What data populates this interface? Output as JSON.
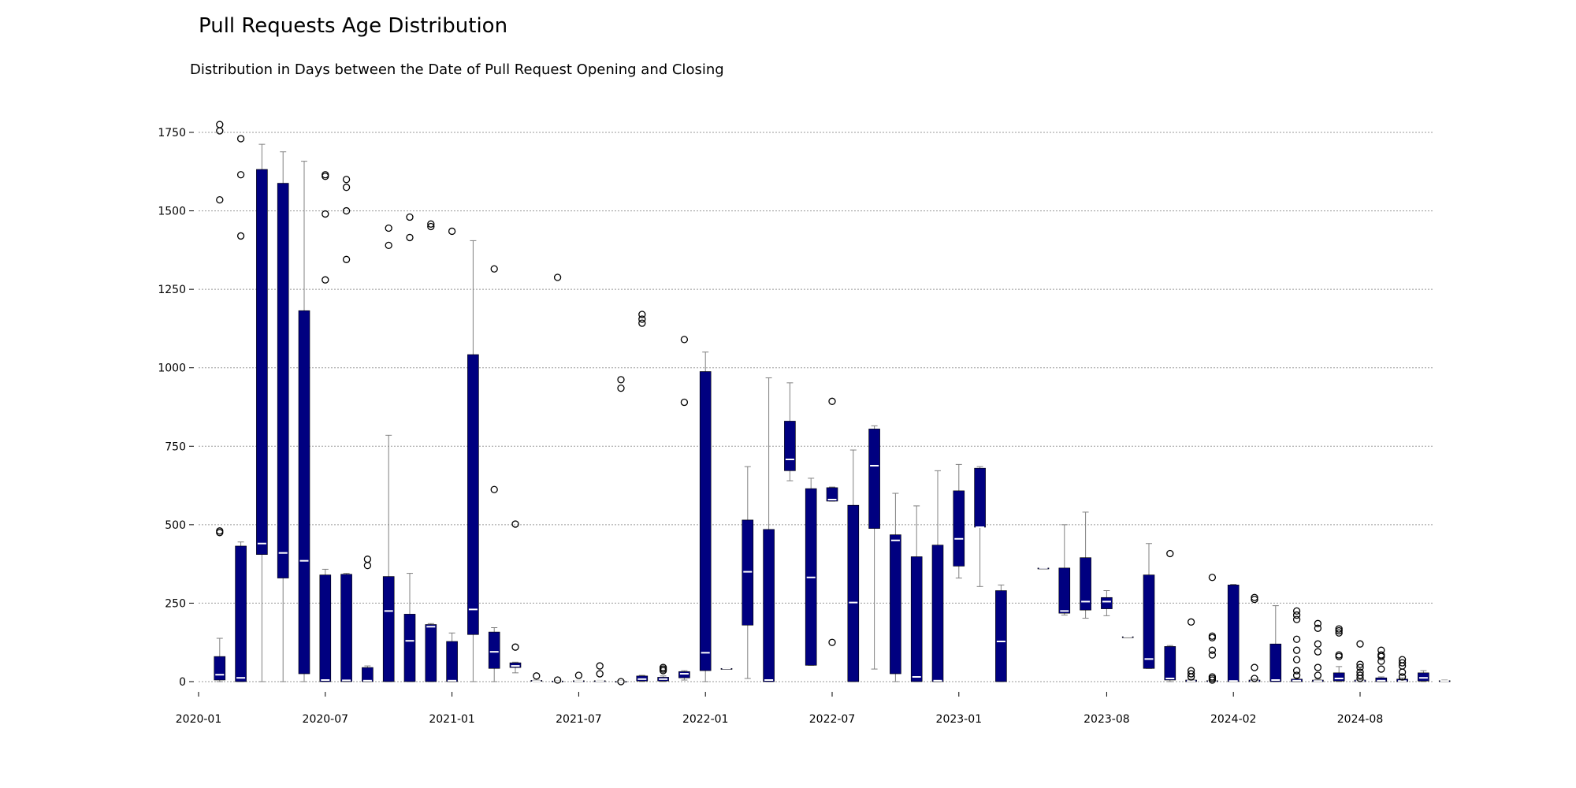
{
  "chart_data": {
    "type": "box",
    "title": "Pull Requests Age Distribution",
    "subtitle": "Distribution in Days between the Date of Pull Request Opening and Closing",
    "xlabel": "",
    "ylabel": "",
    "ylim": [
      -80,
      1820
    ],
    "yticks": [
      0,
      250,
      500,
      750,
      1000,
      1250,
      1500,
      1750
    ],
    "xticks": [
      "2020-01",
      "2020-07",
      "2021-01",
      "2021-07",
      "2022-01",
      "2022-07",
      "2023-01",
      "2023-08",
      "2024-02",
      "2024-08"
    ],
    "grid": true,
    "colors": {
      "box": "#000080",
      "median": "#ffffff",
      "whisker": "#808080",
      "grid": "#999999"
    },
    "boxes": [
      {
        "month": "2020-02",
        "q1": 5,
        "median": 22,
        "q3": 80,
        "low": 0,
        "high": 138,
        "outliers": [
          475,
          480,
          1535,
          1755,
          1775
        ]
      },
      {
        "month": "2020-03",
        "q1": 0,
        "median": 12,
        "q3": 432,
        "low": 0,
        "high": 445,
        "outliers": [
          1420,
          1615,
          1730
        ]
      },
      {
        "month": "2020-04",
        "q1": 405,
        "median": 440,
        "q3": 1632,
        "low": 0,
        "high": 1712,
        "outliers": []
      },
      {
        "month": "2020-05",
        "q1": 330,
        "median": 410,
        "q3": 1588,
        "low": 0,
        "high": 1688,
        "outliers": []
      },
      {
        "month": "2020-06",
        "q1": 25,
        "median": 385,
        "q3": 1182,
        "low": 0,
        "high": 1658,
        "outliers": []
      },
      {
        "month": "2020-07",
        "q1": 0,
        "median": 5,
        "q3": 340,
        "low": 0,
        "high": 358,
        "outliers": [
          1280,
          1490,
          1610,
          1615
        ]
      },
      {
        "month": "2020-08",
        "q1": 0,
        "median": 4,
        "q3": 342,
        "low": 0,
        "high": 345,
        "outliers": [
          1345,
          1500,
          1575,
          1600
        ]
      },
      {
        "month": "2020-09",
        "q1": 0,
        "median": 3,
        "q3": 45,
        "low": 0,
        "high": 50,
        "outliers": [
          370,
          390
        ]
      },
      {
        "month": "2020-10",
        "q1": 0,
        "median": 225,
        "q3": 335,
        "low": 0,
        "high": 785,
        "outliers": [
          1390,
          1445
        ]
      },
      {
        "month": "2020-11",
        "q1": 0,
        "median": 130,
        "q3": 215,
        "low": 0,
        "high": 345,
        "outliers": [
          1415,
          1480
        ]
      },
      {
        "month": "2020-12",
        "q1": 0,
        "median": 175,
        "q3": 182,
        "low": 0,
        "high": 185,
        "outliers": [
          1450,
          1458
        ]
      },
      {
        "month": "2021-01",
        "q1": 0,
        "median": 3,
        "q3": 128,
        "low": 0,
        "high": 155,
        "outliers": [
          1435
        ]
      },
      {
        "month": "2021-02",
        "q1": 150,
        "median": 230,
        "q3": 1042,
        "low": 0,
        "high": 1405,
        "outliers": []
      },
      {
        "month": "2021-03",
        "q1": 42,
        "median": 95,
        "q3": 158,
        "low": 0,
        "high": 172,
        "outliers": [
          612,
          1315
        ]
      },
      {
        "month": "2021-04",
        "q1": 45,
        "median": 50,
        "q3": 60,
        "low": 28,
        "high": 62,
        "outliers": [
          110,
          502
        ]
      },
      {
        "month": "2021-05",
        "q1": 1,
        "median": 2,
        "q3": 4,
        "low": 0,
        "high": 5,
        "outliers": [
          18
        ]
      },
      {
        "month": "2021-06",
        "q1": 0,
        "median": 1,
        "q3": 2,
        "low": 0,
        "high": 3,
        "outliers": [
          5,
          1288
        ]
      },
      {
        "month": "2021-07",
        "q1": 1,
        "median": 2,
        "q3": 3,
        "low": 0,
        "high": 4,
        "outliers": [
          20
        ]
      },
      {
        "month": "2021-08",
        "q1": 1,
        "median": 2,
        "q3": 3,
        "low": 0,
        "high": 4,
        "outliers": [
          25,
          50
        ]
      },
      {
        "month": "2021-09",
        "q1": 0,
        "median": 0,
        "q3": 1,
        "low": 0,
        "high": 2,
        "outliers": [
          0,
          935,
          962
        ]
      },
      {
        "month": "2021-10",
        "q1": 2,
        "median": 8,
        "q3": 18,
        "low": 0,
        "high": 20,
        "outliers": [
          1142,
          1155,
          1170
        ]
      },
      {
        "month": "2021-11",
        "q1": 2,
        "median": 8,
        "q3": 14,
        "low": 0,
        "high": 18,
        "outliers": [
          35,
          40,
          45
        ]
      },
      {
        "month": "2021-12",
        "q1": 12,
        "median": 25,
        "q3": 32,
        "low": 5,
        "high": 35,
        "outliers": [
          890,
          1090
        ]
      },
      {
        "month": "2022-01",
        "q1": 35,
        "median": 92,
        "q3": 988,
        "low": 0,
        "high": 1050,
        "outliers": []
      },
      {
        "month": "2022-02",
        "q1": 42,
        "median": 42,
        "q3": 42,
        "low": 40,
        "high": 43,
        "outliers": []
      },
      {
        "month": "2022-03",
        "q1": 180,
        "median": 350,
        "q3": 515,
        "low": 10,
        "high": 685,
        "outliers": []
      },
      {
        "month": "2022-04",
        "q1": 0,
        "median": 5,
        "q3": 485,
        "low": 0,
        "high": 968,
        "outliers": []
      },
      {
        "month": "2022-05",
        "q1": 672,
        "median": 708,
        "q3": 830,
        "low": 640,
        "high": 952,
        "outliers": []
      },
      {
        "month": "2022-06",
        "q1": 52,
        "median": 332,
        "q3": 615,
        "low": 52,
        "high": 648,
        "outliers": []
      },
      {
        "month": "2022-07",
        "q1": 575,
        "median": 580,
        "q3": 618,
        "low": 575,
        "high": 620,
        "outliers": [
          125,
          893
        ]
      },
      {
        "month": "2022-08",
        "q1": 0,
        "median": 252,
        "q3": 562,
        "low": 0,
        "high": 738,
        "outliers": []
      },
      {
        "month": "2022-09",
        "q1": 488,
        "median": 688,
        "q3": 805,
        "low": 40,
        "high": 815,
        "outliers": []
      },
      {
        "month": "2022-10",
        "q1": 25,
        "median": 450,
        "q3": 468,
        "low": 0,
        "high": 600,
        "outliers": []
      },
      {
        "month": "2022-11",
        "q1": 0,
        "median": 15,
        "q3": 398,
        "low": 0,
        "high": 560,
        "outliers": []
      },
      {
        "month": "2022-12",
        "q1": 0,
        "median": 3,
        "q3": 435,
        "low": 0,
        "high": 672,
        "outliers": []
      },
      {
        "month": "2023-01",
        "q1": 368,
        "median": 455,
        "q3": 608,
        "low": 330,
        "high": 692,
        "outliers": []
      },
      {
        "month": "2023-02",
        "q1": 492,
        "median": 492,
        "q3": 680,
        "low": 303,
        "high": 685,
        "outliers": []
      },
      {
        "month": "2023-03",
        "q1": 0,
        "median": 128,
        "q3": 290,
        "low": 0,
        "high": 308,
        "outliers": []
      },
      {
        "month": "2023-05",
        "q1": 362,
        "median": 362,
        "q3": 362,
        "low": 362,
        "high": 363,
        "outliers": []
      },
      {
        "month": "2023-06",
        "q1": 218,
        "median": 225,
        "q3": 362,
        "low": 212,
        "high": 500,
        "outliers": []
      },
      {
        "month": "2023-07",
        "q1": 228,
        "median": 255,
        "q3": 395,
        "low": 202,
        "high": 540,
        "outliers": []
      },
      {
        "month": "2023-08",
        "q1": 232,
        "median": 255,
        "q3": 268,
        "low": 210,
        "high": 290,
        "outliers": []
      },
      {
        "month": "2023-09",
        "q1": 143,
        "median": 143,
        "q3": 143,
        "low": 142,
        "high": 144,
        "outliers": []
      },
      {
        "month": "2023-10",
        "q1": 42,
        "median": 72,
        "q3": 340,
        "low": 42,
        "high": 440,
        "outliers": []
      },
      {
        "month": "2023-11",
        "q1": 5,
        "median": 10,
        "q3": 112,
        "low": 0,
        "high": 115,
        "outliers": [
          408
        ]
      },
      {
        "month": "2023-12",
        "q1": 0,
        "median": 2,
        "q3": 5,
        "low": 0,
        "high": 8,
        "outliers": [
          15,
          25,
          35,
          190
        ]
      },
      {
        "month": "2024-01",
        "q1": 0,
        "median": 1,
        "q3": 3,
        "low": 0,
        "high": 4,
        "outliers": [
          5,
          10,
          15,
          85,
          100,
          140,
          145,
          332
        ]
      },
      {
        "month": "2024-02",
        "q1": 0,
        "median": 2,
        "q3": 308,
        "low": 0,
        "high": 310,
        "outliers": []
      },
      {
        "month": "2024-03",
        "q1": 0,
        "median": 2,
        "q3": 5,
        "low": 0,
        "high": 8,
        "outliers": [
          10,
          45,
          262,
          268
        ]
      },
      {
        "month": "2024-04",
        "q1": 0,
        "median": 5,
        "q3": 120,
        "low": 0,
        "high": 242,
        "outliers": []
      },
      {
        "month": "2024-05",
        "q1": 0,
        "median": 3,
        "q3": 8,
        "low": 0,
        "high": 12,
        "outliers": [
          20,
          35,
          70,
          100,
          135,
          198,
          212,
          225
        ]
      },
      {
        "month": "2024-06",
        "q1": 0,
        "median": 2,
        "q3": 5,
        "low": 0,
        "high": 8,
        "outliers": [
          20,
          45,
          95,
          120,
          170,
          185
        ]
      },
      {
        "month": "2024-07",
        "q1": 2,
        "median": 10,
        "q3": 28,
        "low": 0,
        "high": 48,
        "outliers": [
          80,
          85,
          155,
          162,
          168
        ]
      },
      {
        "month": "2024-08",
        "q1": 0,
        "median": 2,
        "q3": 5,
        "low": 0,
        "high": 8,
        "outliers": [
          10,
          20,
          30,
          45,
          55,
          120
        ]
      },
      {
        "month": "2024-09",
        "q1": 0,
        "median": 3,
        "q3": 12,
        "low": 0,
        "high": 15,
        "outliers": [
          40,
          65,
          80,
          85,
          100
        ]
      },
      {
        "month": "2024-10",
        "q1": 0,
        "median": 2,
        "q3": 8,
        "low": 0,
        "high": 12,
        "outliers": [
          15,
          30,
          50,
          60,
          70
        ]
      },
      {
        "month": "2024-11",
        "q1": 2,
        "median": 12,
        "q3": 28,
        "low": 0,
        "high": 35,
        "outliers": []
      },
      {
        "month": "2024-12",
        "q1": 0,
        "median": 2,
        "q3": 3,
        "low": 0,
        "high": 5,
        "outliers": []
      }
    ]
  }
}
